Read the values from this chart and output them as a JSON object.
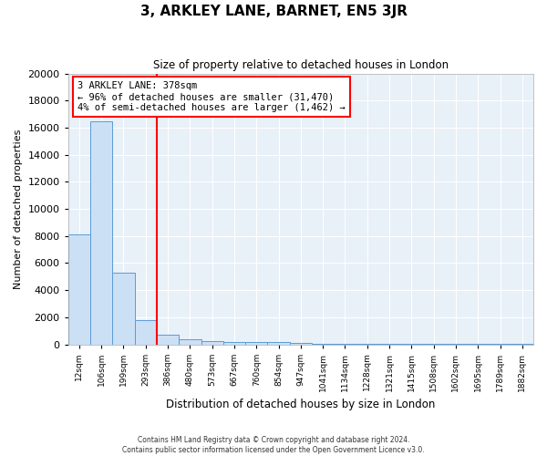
{
  "title": "3, ARKLEY LANE, BARNET, EN5 3JR",
  "subtitle": "Size of property relative to detached houses in London",
  "xlabel": "Distribution of detached houses by size in London",
  "ylabel": "Number of detached properties",
  "bin_labels": [
    "12sqm",
    "106sqm",
    "199sqm",
    "293sqm",
    "386sqm",
    "480sqm",
    "573sqm",
    "667sqm",
    "760sqm",
    "854sqm",
    "947sqm",
    "1041sqm",
    "1134sqm",
    "1228sqm",
    "1321sqm",
    "1415sqm",
    "1508sqm",
    "1602sqm",
    "1695sqm",
    "1789sqm",
    "1882sqm"
  ],
  "bar_heights": [
    8100,
    16500,
    5300,
    1800,
    700,
    350,
    250,
    200,
    150,
    150,
    80,
    50,
    30,
    20,
    15,
    10,
    8,
    5,
    4,
    3,
    2
  ],
  "bar_color": "#cce0f5",
  "bar_edge_color": "#5b9bd5",
  "red_line_x": 3.5,
  "ylim": [
    0,
    20000
  ],
  "property_label": "3 ARKLEY LANE: 378sqm",
  "annotation_line1": "← 96% of detached houses are smaller (31,470)",
  "annotation_line2": "4% of semi-detached houses are larger (1,462) →",
  "footer_line1": "Contains HM Land Registry data © Crown copyright and database right 2024.",
  "footer_line2": "Contains public sector information licensed under the Open Government Licence v3.0.",
  "bg_color": "#e8f0f8",
  "fig_bg_color": "#ffffff"
}
